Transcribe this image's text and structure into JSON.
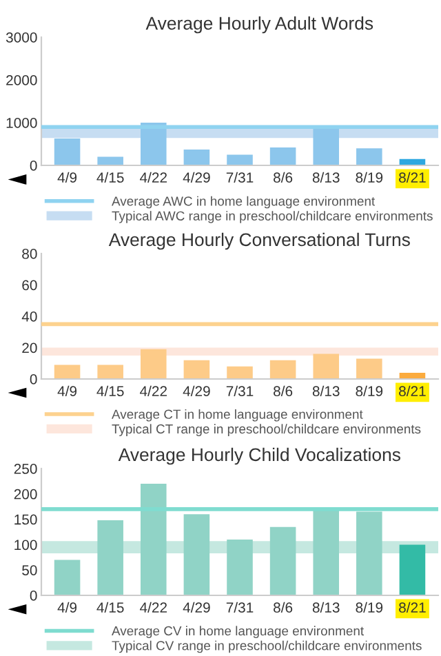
{
  "chart_data": [
    {
      "type": "bar",
      "title": "Average Hourly Adult Words",
      "categories": [
        "4/9",
        "4/15",
        "4/22",
        "4/29",
        "7/31",
        "8/6",
        "8/13",
        "8/19",
        "8/21"
      ],
      "values": [
        630,
        200,
        1000,
        370,
        250,
        420,
        900,
        400,
        150
      ],
      "colors": [
        "#8cc6ec",
        "#8cc6ec",
        "#8cc6ec",
        "#8cc6ec",
        "#8cc6ec",
        "#8cc6ec",
        "#8cc6ec",
        "#8cc6ec",
        "#2ea8e0"
      ],
      "ylim": [
        0,
        3000
      ],
      "yticks": [
        0,
        1000,
        2000,
        3000
      ],
      "ref_lines": [
        {
          "axis": "y",
          "value": 900,
          "label": "Average AWC in home language environment",
          "color": "#8fd3f0"
        }
      ],
      "bands": [
        {
          "axis": "y",
          "from": 640,
          "to": 900,
          "label": "Typical AWC range in preschool/childcare environments",
          "color": "#c6ddf2"
        }
      ],
      "legend": "bottom",
      "grid": false
    },
    {
      "type": "bar",
      "title": "Average Hourly Conversational Turns",
      "categories": [
        "4/9",
        "4/15",
        "4/22",
        "4/29",
        "7/31",
        "8/6",
        "8/13",
        "8/19",
        "8/21"
      ],
      "values": [
        9,
        9,
        19,
        12,
        8,
        12,
        16,
        13,
        4
      ],
      "colors": [
        "#fdcb88",
        "#fdcb88",
        "#fdcb88",
        "#fdcb88",
        "#fdcb88",
        "#fdcb88",
        "#fdcb88",
        "#fdcb88",
        "#fbab3e"
      ],
      "ylim": [
        0,
        80
      ],
      "yticks": [
        0,
        20,
        40,
        60,
        80
      ],
      "ref_lines": [
        {
          "axis": "y",
          "value": 35,
          "label": "Average CT in home language environment",
          "color": "#fdd28e"
        }
      ],
      "bands": [
        {
          "axis": "y",
          "from": 15,
          "to": 20,
          "label": "Typical CT range in preschool/childcare environments",
          "color": "#fde6dc"
        }
      ],
      "legend": "bottom",
      "grid": false
    },
    {
      "type": "bar",
      "title": "Average Hourly Child Vocalizations",
      "categories": [
        "4/9",
        "4/15",
        "4/22",
        "4/29",
        "7/31",
        "8/6",
        "8/13",
        "8/19",
        "8/21"
      ],
      "values": [
        70,
        148,
        220,
        160,
        110,
        135,
        170,
        165,
        100
      ],
      "colors": [
        "#90d3c6",
        "#90d3c6",
        "#90d3c6",
        "#90d3c6",
        "#90d3c6",
        "#90d3c6",
        "#90d3c6",
        "#90d3c6",
        "#33bba6"
      ],
      "ylim": [
        0,
        250
      ],
      "yticks": [
        0,
        50,
        100,
        150,
        200,
        250
      ],
      "ref_lines": [
        {
          "axis": "y",
          "value": 170,
          "label": "Average CV in home language environment",
          "color": "#7fdcd0"
        }
      ],
      "bands": [
        {
          "axis": "y",
          "from": 83,
          "to": 107,
          "label": "Typical CV range in preschool/childcare environments",
          "color": "#c5e8e0"
        }
      ],
      "legend": "bottom",
      "grid": false
    }
  ]
}
